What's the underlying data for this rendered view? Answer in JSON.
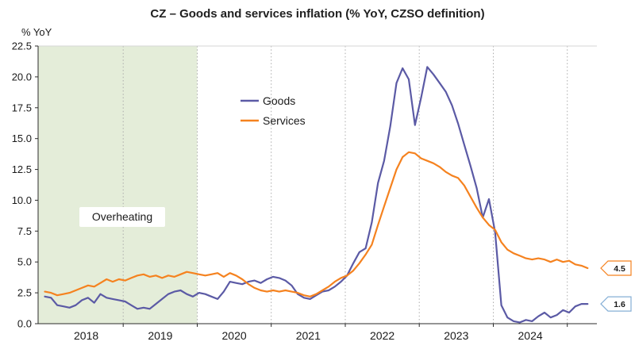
{
  "title": "CZ – Goods and services inflation (% YoY, CZSO definition)",
  "y_axis_label": "% YoY",
  "annotation_label": "Overheating",
  "legend": {
    "goods": "Goods",
    "services": "Services"
  },
  "chart_data": {
    "type": "line",
    "title": "CZ – Goods and services inflation (% YoY, CZSO definition)",
    "ylabel": "% YoY",
    "ylim": [
      0,
      22.5
    ],
    "xlim": [
      2017.45,
      2025.0
    ],
    "y_ticks": [
      "0.0",
      "2.5",
      "5.0",
      "7.5",
      "10.0",
      "12.5",
      "15.0",
      "17.5",
      "20.0",
      "22.5"
    ],
    "x_tick_years": [
      2018,
      2019,
      2020,
      2021,
      2022,
      2023,
      2024
    ],
    "gridline_x": [
      2018.6,
      2019.6,
      2020.6,
      2021.6,
      2022.6,
      2023.6,
      2024.6
    ],
    "grid": "vertical-dotted",
    "legend_position": "inside-upper-middle",
    "x_start": {
      "year": 2017,
      "month": 7
    },
    "frequency": "monthly",
    "shaded_region": {
      "label": "Overheating",
      "x_from": 2017.45,
      "x_to": 2019.6,
      "color": "#E4EDD9"
    },
    "series": [
      {
        "name": "Goods",
        "color": "#5B5AA5",
        "end_label": "1.6",
        "end_label_color": "#85AFD6",
        "values": [
          2.2,
          2.1,
          1.5,
          1.4,
          1.3,
          1.5,
          1.9,
          2.1,
          1.7,
          2.4,
          2.1,
          2.0,
          1.9,
          1.8,
          1.5,
          1.2,
          1.3,
          1.2,
          1.6,
          2.0,
          2.4,
          2.6,
          2.7,
          2.4,
          2.2,
          2.5,
          2.4,
          2.2,
          2.0,
          2.6,
          3.4,
          3.3,
          3.2,
          3.4,
          3.5,
          3.3,
          3.6,
          3.8,
          3.7,
          3.5,
          3.1,
          2.4,
          2.1,
          2.0,
          2.3,
          2.6,
          2.7,
          3.0,
          3.4,
          3.9,
          4.9,
          5.8,
          6.1,
          8.2,
          11.4,
          13.2,
          16.0,
          19.5,
          20.7,
          19.8,
          16.1,
          18.3,
          20.8,
          20.2,
          19.5,
          18.8,
          17.7,
          16.2,
          14.5,
          12.8,
          11.0,
          8.6,
          10.1,
          7.4,
          1.5,
          0.5,
          0.2,
          0.1,
          0.3,
          0.2,
          0.6,
          0.9,
          0.5,
          0.7,
          1.1,
          0.9,
          1.4,
          1.6,
          1.6
        ]
      },
      {
        "name": "Services",
        "color": "#F5821F",
        "end_label": "4.5",
        "end_label_color": "#F5821F",
        "values": [
          2.6,
          2.5,
          2.3,
          2.4,
          2.5,
          2.7,
          2.9,
          3.1,
          3.0,
          3.3,
          3.6,
          3.4,
          3.6,
          3.5,
          3.7,
          3.9,
          4.0,
          3.8,
          3.9,
          3.7,
          3.9,
          3.8,
          4.0,
          4.2,
          4.1,
          4.0,
          3.9,
          4.0,
          4.1,
          3.8,
          4.1,
          3.9,
          3.6,
          3.2,
          2.9,
          2.7,
          2.6,
          2.7,
          2.6,
          2.7,
          2.6,
          2.5,
          2.3,
          2.2,
          2.4,
          2.7,
          3.0,
          3.4,
          3.7,
          3.9,
          4.3,
          4.9,
          5.6,
          6.4,
          8.0,
          9.5,
          11.0,
          12.5,
          13.5,
          13.9,
          13.8,
          13.4,
          13.2,
          13.0,
          12.7,
          12.3,
          12.0,
          11.8,
          11.2,
          10.3,
          9.4,
          8.6,
          8.0,
          7.6,
          6.6,
          6.0,
          5.7,
          5.5,
          5.3,
          5.2,
          5.3,
          5.2,
          5.0,
          5.2,
          5.0,
          5.1,
          4.8,
          4.7,
          4.5
        ]
      }
    ]
  }
}
